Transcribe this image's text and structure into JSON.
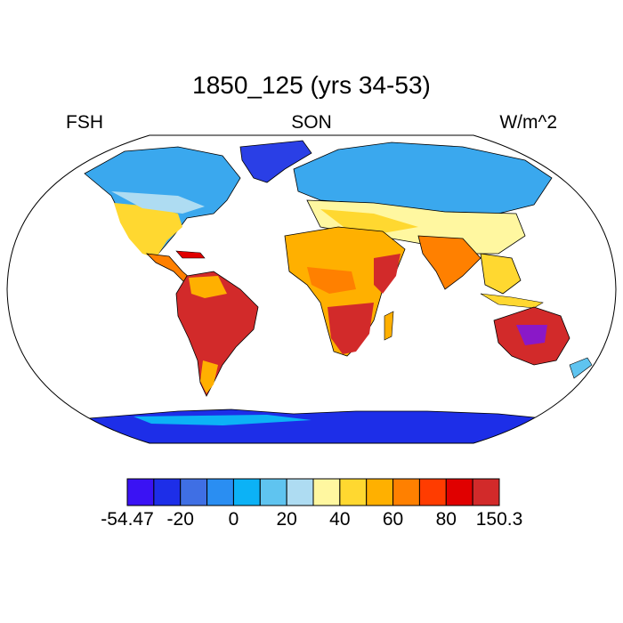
{
  "title": "1850_125 (yrs 34-53)",
  "left_label": "FSH",
  "center_label": "SON",
  "right_label": "W/m^2",
  "colorbar": {
    "colors": [
      "#3a12f4",
      "#1d2ee8",
      "#3f6fe4",
      "#2a8ef2",
      "#0cb2f6",
      "#5fc4f0",
      "#aedcf2",
      "#fff7a0",
      "#ffd830",
      "#ffb000",
      "#ff8000",
      "#ff3c00",
      "#e00000",
      "#d22a2a"
    ],
    "labels": [
      {
        "index": 0,
        "text": "-54.47"
      },
      {
        "index": 2,
        "text": "-20"
      },
      {
        "index": 4,
        "text": "0"
      },
      {
        "index": 6,
        "text": "20"
      },
      {
        "index": 8,
        "text": "40"
      },
      {
        "index": 10,
        "text": "60"
      },
      {
        "index": 12,
        "text": "80"
      },
      {
        "index": 14,
        "text": "150.3"
      }
    ]
  }
}
